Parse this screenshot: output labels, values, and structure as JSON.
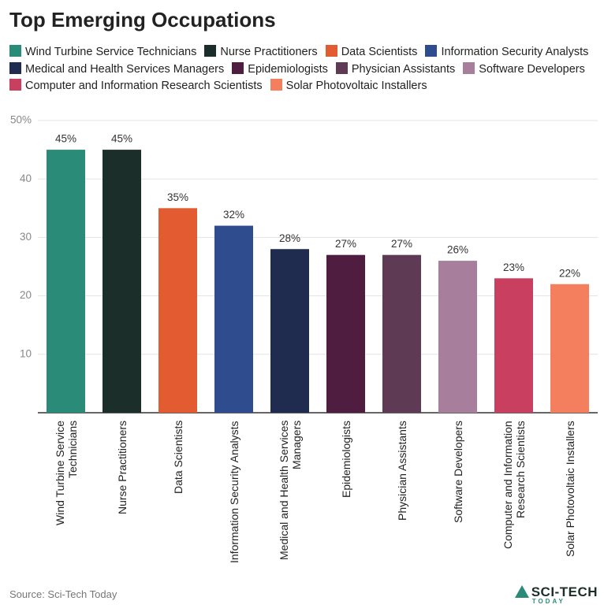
{
  "chart_data": {
    "type": "bar",
    "title": "Top Emerging Occupations",
    "categories": [
      "Wind Turbine Service Technicians",
      "Nurse Practitioners",
      "Data Scientists",
      "Information Security Analysts",
      "Medical and Health Services Managers",
      "Epidemiologists",
      "Physician Assistants",
      "Software Developers",
      "Computer and Information Research Scientists",
      "Solar Photovoltaic Installers"
    ],
    "values": [
      45,
      45,
      35,
      32,
      28,
      27,
      27,
      26,
      23,
      22
    ],
    "value_labels": [
      "45%",
      "45%",
      "35%",
      "32%",
      "28%",
      "27%",
      "27%",
      "26%",
      "23%",
      "22%"
    ],
    "colors": [
      "#2a8c78",
      "#1b2e2a",
      "#e35b30",
      "#2f4c8e",
      "#1f2b4f",
      "#4e1d3f",
      "#5e3a55",
      "#a77f9c",
      "#c93f5f",
      "#f47f5f"
    ],
    "ylim": [
      0,
      50
    ],
    "yticks": [
      10,
      20,
      30,
      40,
      {
        "value": 50,
        "label": "50%"
      }
    ],
    "grid": true,
    "source": "Source: Sci-Tech Today",
    "logo": {
      "name": "SCI-TECH",
      "tagline": "TODAY"
    }
  }
}
